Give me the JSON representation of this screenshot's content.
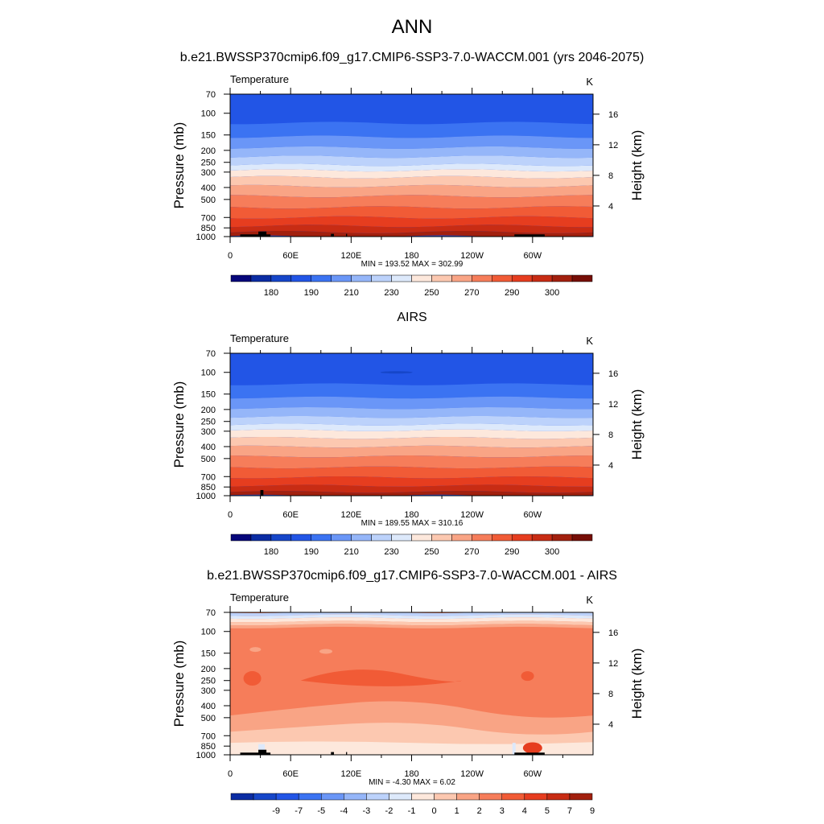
{
  "figure": {
    "title": "ANN"
  },
  "colors": {
    "temperature_levels": [
      "#06067a",
      "#0b2ca3",
      "#1646c9",
      "#2255e6",
      "#3b73f2",
      "#6a96f7",
      "#95b6f9",
      "#bcd2fb",
      "#dde9fb",
      "#fde8dc",
      "#fcc8b0",
      "#f9a485",
      "#f67d5a",
      "#f15b36",
      "#e63d1f",
      "#c82c14",
      "#a2200e",
      "#760e07"
    ],
    "difference_levels": [
      "#06067a",
      "#0b2ca3",
      "#1646c9",
      "#2255e6",
      "#3b73f2",
      "#6a96f7",
      "#95b6f9",
      "#bcd2fb",
      "#dde9fb",
      "#fde8dc",
      "#fcc8b0",
      "#f9a485",
      "#f67d5a",
      "#f15b36",
      "#e63d1f",
      "#c82c14",
      "#a2200e",
      "#760e07"
    ],
    "terrain": "#000000"
  },
  "chart_data": [
    {
      "type": "heatmap",
      "panel_title": "b.e21.BWSSP370cmip6.f09_g17.CMIP6-SSP3-7.0-WACCM.001 (yrs 2046-2075)",
      "variable_label": "Temperature",
      "units": "K",
      "ylabel": "Pressure (mb)",
      "y2label": "Height (km)",
      "xtick_labels": [
        "0",
        "60E",
        "120E",
        "180",
        "120W",
        "60W"
      ],
      "xtick_lons": [
        0,
        60,
        120,
        180,
        240,
        300
      ],
      "xlim": [
        0,
        360
      ],
      "pressure_ticks": [
        "70",
        "100",
        "150",
        "200",
        "250",
        "300",
        "400",
        "500",
        "700",
        "850",
        "1000"
      ],
      "height_ticks": [
        "4",
        "8",
        "12",
        "16"
      ],
      "ylim_mb": [
        70,
        1000
      ],
      "stats_text": "MIN = 193.52  MAX = 302.99",
      "min": 193.52,
      "max": 302.99,
      "colorbar_labels": [
        "180",
        "190",
        "210",
        "230",
        "250",
        "270",
        "290",
        "300"
      ],
      "colorbar_label_boxes": [
        1,
        3,
        5,
        7,
        9,
        11,
        13,
        15
      ]
    },
    {
      "type": "heatmap",
      "panel_title": "AIRS",
      "variable_label": "Temperature",
      "units": "K",
      "ylabel": "Pressure (mb)",
      "y2label": "Height (km)",
      "xtick_labels": [
        "0",
        "60E",
        "120E",
        "180",
        "120W",
        "60W"
      ],
      "xtick_lons": [
        0,
        60,
        120,
        180,
        240,
        300
      ],
      "xlim": [
        0,
        360
      ],
      "pressure_ticks": [
        "70",
        "100",
        "150",
        "200",
        "250",
        "300",
        "400",
        "500",
        "700",
        "850",
        "1000"
      ],
      "height_ticks": [
        "4",
        "8",
        "12",
        "16"
      ],
      "ylim_mb": [
        70,
        1000
      ],
      "stats_text": "MIN = 189.55  MAX = 310.16",
      "min": 189.55,
      "max": 310.16,
      "colorbar_labels": [
        "180",
        "190",
        "210",
        "230",
        "250",
        "270",
        "290",
        "300"
      ],
      "colorbar_label_boxes": [
        1,
        3,
        5,
        7,
        9,
        11,
        13,
        15
      ]
    },
    {
      "type": "heatmap",
      "panel_title": "b.e21.BWSSP370cmip6.f09_g17.CMIP6-SSP3-7.0-WACCM.001 - AIRS",
      "variable_label": "Temperature",
      "units": "K",
      "ylabel": "Pressure (mb)",
      "y2label": "Height (km)",
      "xtick_labels": [
        "0",
        "60E",
        "120E",
        "180",
        "120W",
        "60W"
      ],
      "xtick_lons": [
        0,
        60,
        120,
        180,
        240,
        300
      ],
      "xlim": [
        0,
        360
      ],
      "pressure_ticks": [
        "70",
        "100",
        "150",
        "200",
        "250",
        "300",
        "400",
        "500",
        "700",
        "850",
        "1000"
      ],
      "height_ticks": [
        "4",
        "8",
        "12",
        "16"
      ],
      "ylim_mb": [
        70,
        1000
      ],
      "stats_text": "MIN =  -4.30  MAX =   6.02",
      "min": -4.3,
      "max": 6.02,
      "colorbar_labels": [
        "-9",
        "-7",
        "-5",
        "-4",
        "-3",
        "-2",
        "-1",
        "0",
        "1",
        "2",
        "3",
        "4",
        "5",
        "7",
        "9"
      ],
      "colorbar_label_boxes": [
        1,
        2,
        3,
        4,
        5,
        6,
        7,
        8,
        9,
        10,
        11,
        12,
        13,
        14,
        15
      ]
    }
  ]
}
